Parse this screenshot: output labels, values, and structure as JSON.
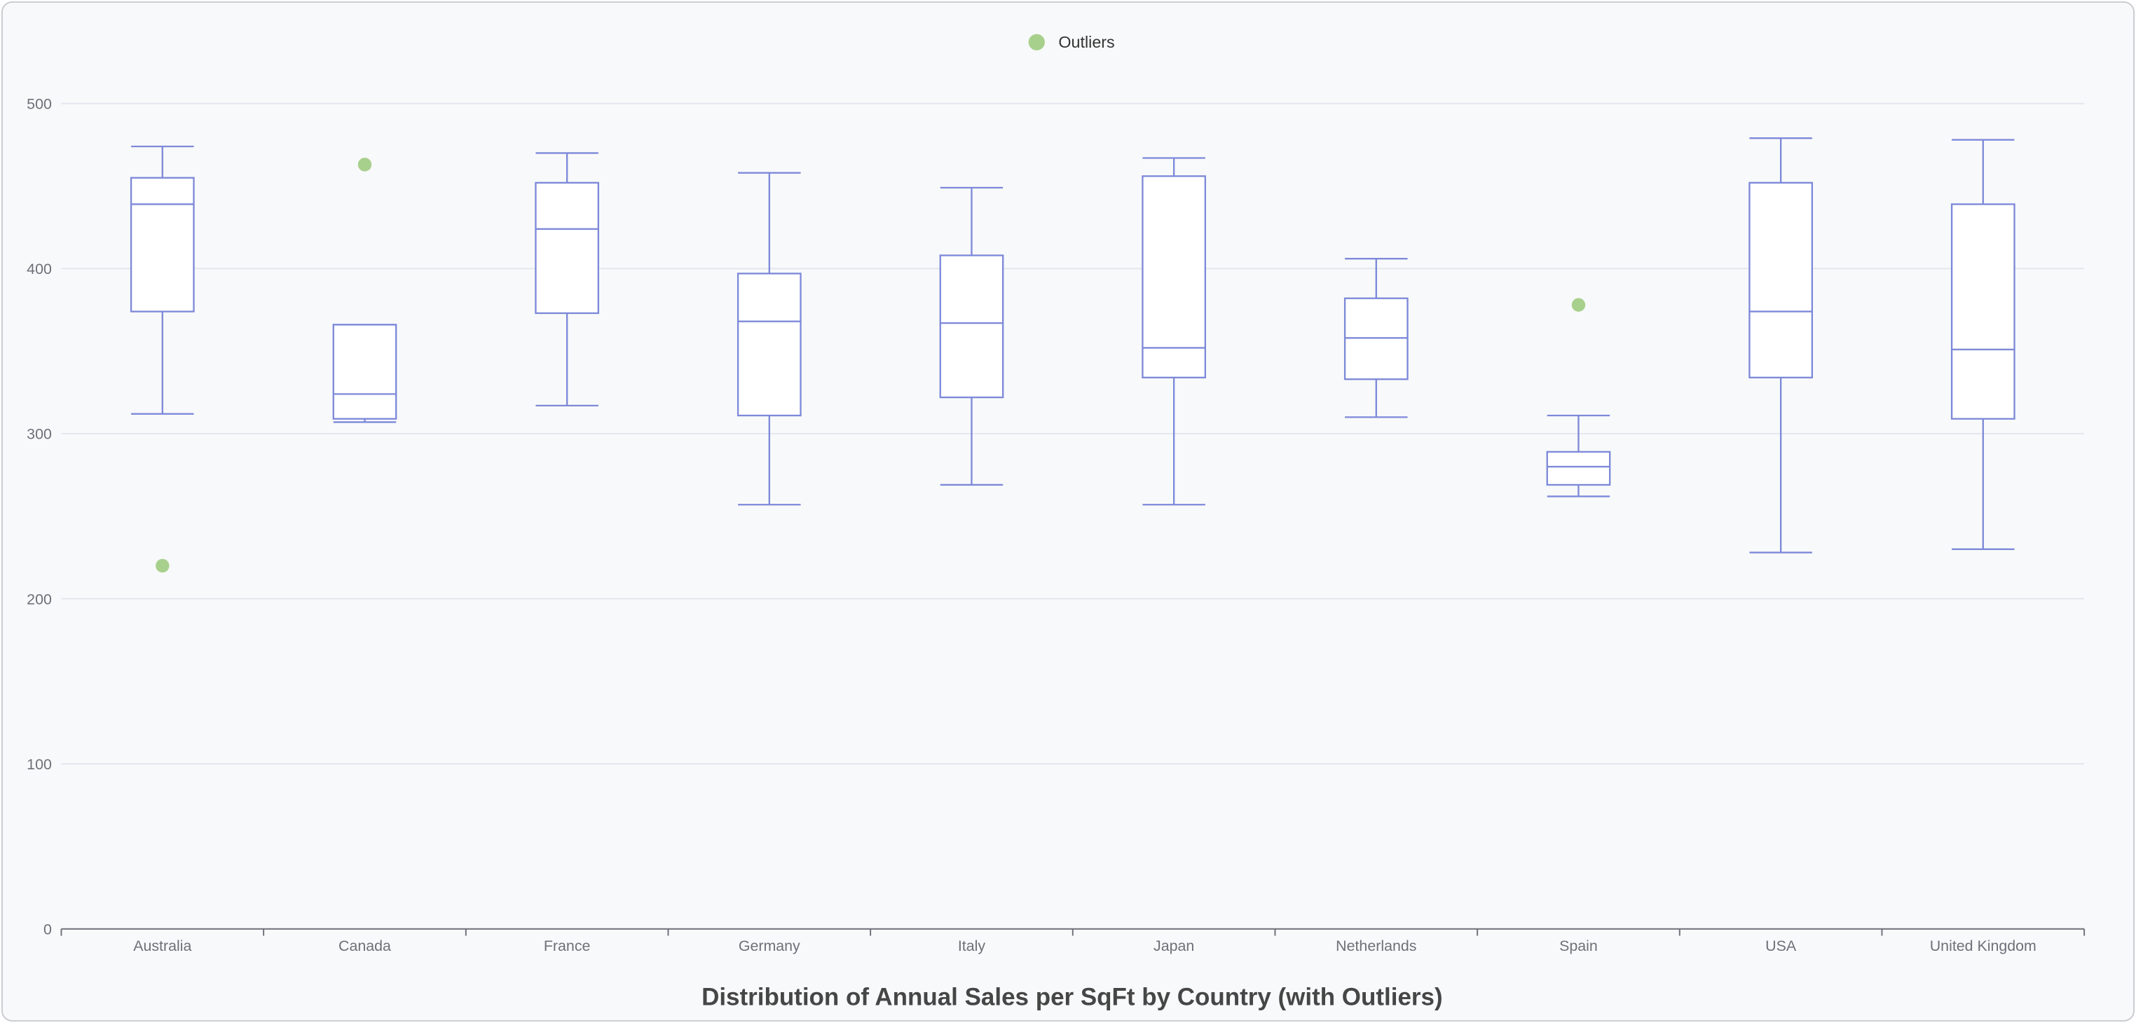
{
  "chart_data": {
    "type": "boxplot",
    "title": "Distribution of Annual Sales per SqFt by Country (with Outliers)",
    "xlabel": "",
    "ylabel": "",
    "ylim": [
      0,
      500
    ],
    "yticks": [
      0,
      100,
      200,
      300,
      400,
      500
    ],
    "grid": true,
    "legend": {
      "position": "top-center",
      "entries": [
        "Outliers"
      ]
    },
    "categories": [
      "Australia",
      "Canada",
      "France",
      "Germany",
      "Italy",
      "Japan",
      "Netherlands",
      "Spain",
      "USA",
      "United Kingdom"
    ],
    "boxes": [
      {
        "min": 312,
        "q1": 374,
        "median": 439,
        "q3": 455,
        "max": 474
      },
      {
        "min": 307,
        "q1": 309,
        "median": 324,
        "q3": 366,
        "max": 366
      },
      {
        "min": 317,
        "q1": 373,
        "median": 424,
        "q3": 452,
        "max": 470
      },
      {
        "min": 257,
        "q1": 311,
        "median": 368,
        "q3": 397,
        "max": 458
      },
      {
        "min": 269,
        "q1": 322,
        "median": 367,
        "q3": 408,
        "max": 449
      },
      {
        "min": 257,
        "q1": 334,
        "median": 352,
        "q3": 456,
        "max": 467
      },
      {
        "min": 310,
        "q1": 333,
        "median": 358,
        "q3": 382,
        "max": 406
      },
      {
        "min": 262,
        "q1": 269,
        "median": 280,
        "q3": 289,
        "max": 311
      },
      {
        "min": 228,
        "q1": 334,
        "median": 374,
        "q3": 452,
        "max": 479
      },
      {
        "min": 230,
        "q1": 309,
        "median": 351,
        "q3": 439,
        "max": 478
      }
    ],
    "outliers": [
      {
        "category": "Australia",
        "value": 220
      },
      {
        "category": "Canada",
        "value": 463
      },
      {
        "category": "Spain",
        "value": 378
      }
    ],
    "colors": {
      "box": "#7d89d9",
      "outlier": "#a8d08d",
      "grid": "#e3e6ee",
      "axis": "#6e7079"
    }
  }
}
